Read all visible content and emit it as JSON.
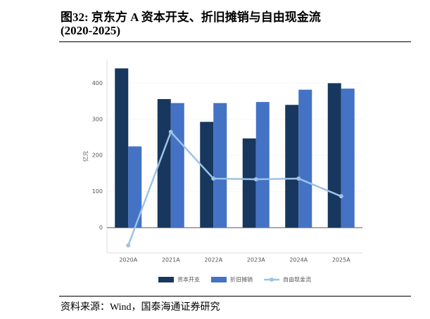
{
  "title_lines": [
    "图32:  京东方 A 资本开支、折旧摊销与自由现金流",
    "(2020-2025)"
  ],
  "source": "资料来源：Wind，国泰海通证券研究",
  "chart_data": {
    "type": "bar",
    "y_label": "亿元",
    "categories": [
      "2020A",
      "2021A",
      "2022A",
      "2023A",
      "2024A",
      "2025A"
    ],
    "series": [
      {
        "name": "资本开支",
        "type": "bar",
        "color": "#17375e",
        "values": [
          441,
          356,
          293,
          247,
          340,
          400
        ]
      },
      {
        "name": "折旧摊销",
        "type": "bar",
        "color": "#4472c4",
        "values": [
          225,
          345,
          345,
          348,
          382,
          385
        ]
      },
      {
        "name": "自由现金流",
        "type": "line",
        "color": "#9dc3e6",
        "values": [
          -49,
          265,
          136,
          134,
          136,
          87
        ]
      }
    ],
    "ylim": [
      -70,
      465
    ],
    "yticks": [
      0,
      100,
      200,
      300,
      400
    ],
    "grid": true
  }
}
